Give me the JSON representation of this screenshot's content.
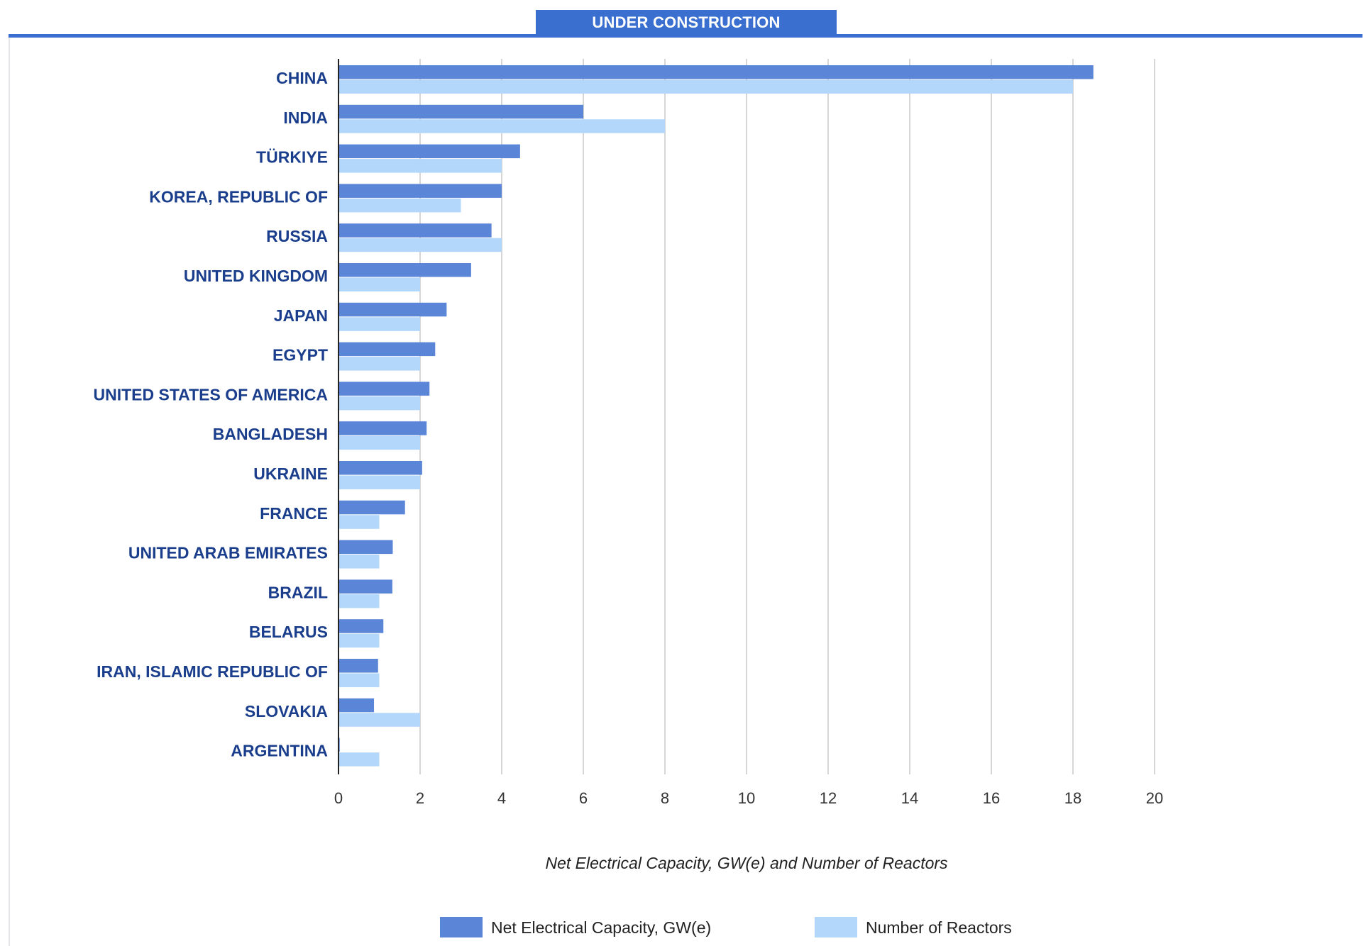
{
  "header": {
    "tab_label": "UNDER CONSTRUCTION"
  },
  "colors": {
    "accent": "#3a6fd0",
    "capacity": "#5b85d6",
    "reactors": "#b3d7fb",
    "label": "#1a3e8c"
  },
  "chart_data": {
    "type": "bar",
    "orientation": "horizontal",
    "categories": [
      "CHINA",
      "INDIA",
      "TÜRKIYE",
      "KOREA, REPUBLIC OF",
      "RUSSIA",
      "UNITED KINGDOM",
      "JAPAN",
      "EGYPT",
      "UNITED STATES OF AMERICA",
      "BANGLADESH",
      "UKRAINE",
      "FRANCE",
      "UNITED ARAB EMIRATES",
      "BRAZIL",
      "BELARUS",
      "IRAN, ISLAMIC REPUBLIC OF",
      "SLOVAKIA",
      "ARGENTINA"
    ],
    "series": [
      {
        "name": "Net Electrical Capacity, GW(e)",
        "values": [
          18.5,
          6.0,
          4.45,
          4.0,
          3.75,
          3.25,
          2.65,
          2.37,
          2.23,
          2.16,
          2.05,
          1.63,
          1.33,
          1.32,
          1.1,
          0.97,
          0.87,
          0.03
        ]
      },
      {
        "name": "Number of Reactors",
        "values": [
          18,
          8,
          4,
          3,
          4,
          2,
          2,
          2,
          2,
          2,
          2,
          1,
          1,
          1,
          1,
          1,
          2,
          1
        ]
      }
    ],
    "xlabel": "Net Electrical Capacity, GW(e) and Number of Reactors",
    "xticks": [
      0,
      2,
      4,
      6,
      8,
      10,
      12,
      14,
      16,
      18,
      20
    ],
    "xlim": [
      0,
      20
    ],
    "grid": true,
    "legend": "bottom"
  }
}
